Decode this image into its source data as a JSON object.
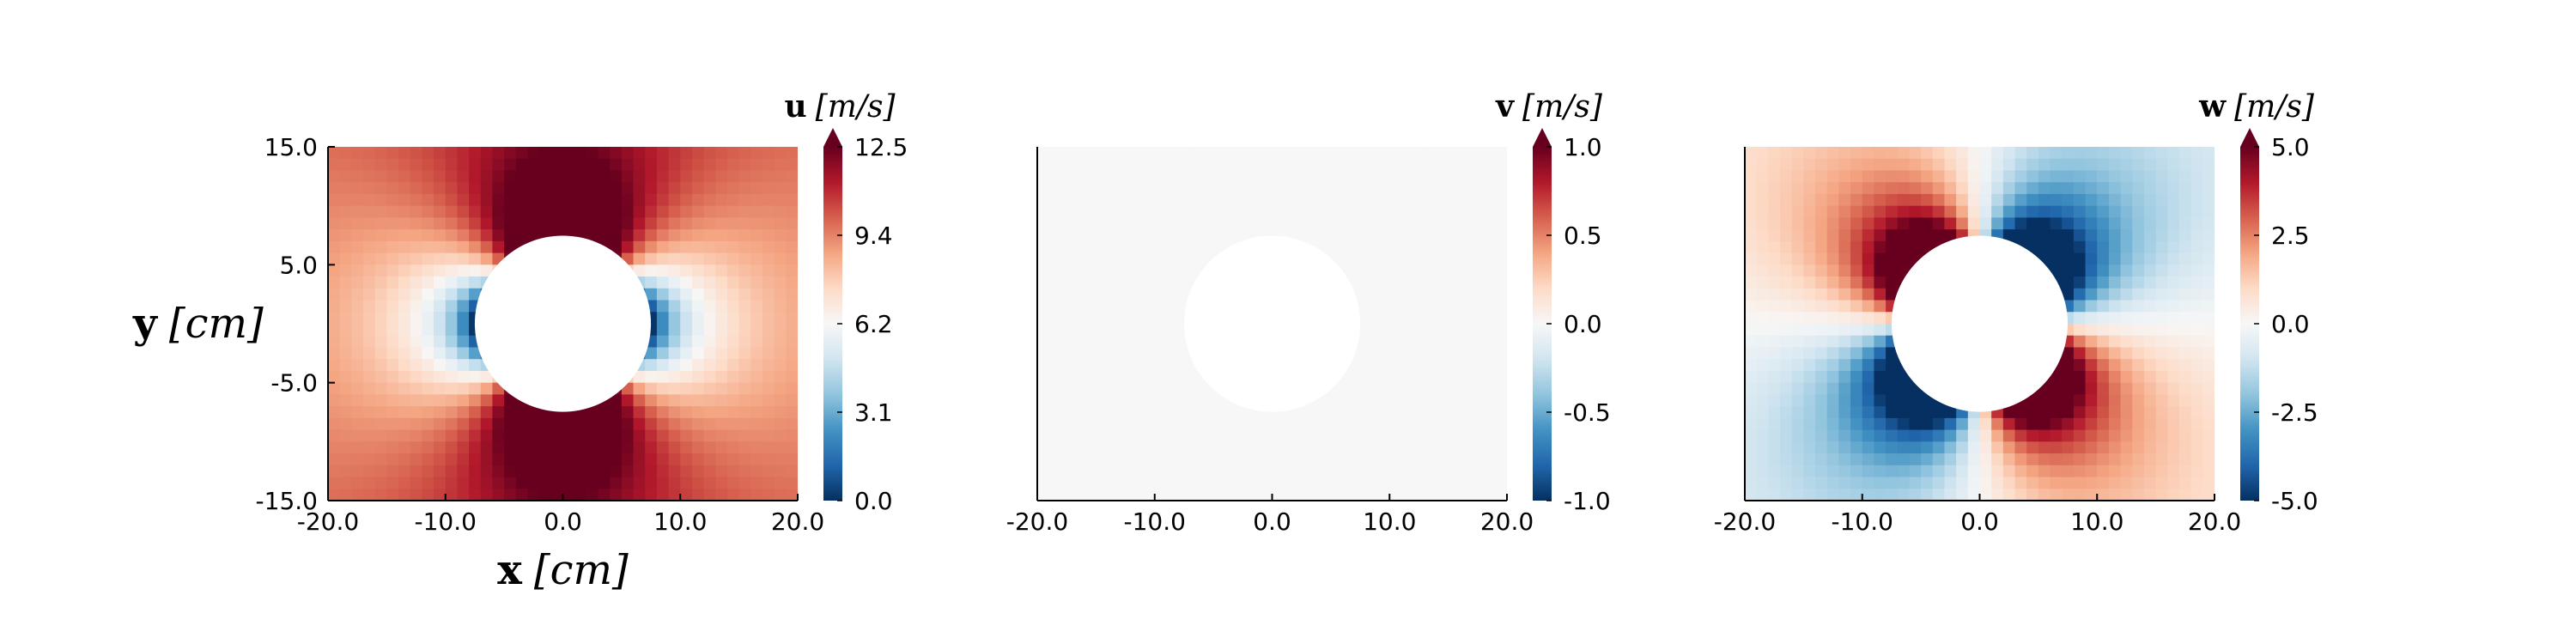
{
  "chart_data": [
    {
      "type": "heatmap",
      "field": "u",
      "colorbar_label": {
        "var": "u",
        "unit": "[m/s]"
      },
      "ylabel": {
        "var": "y",
        "unit": "[cm]"
      },
      "xlabel": {
        "var": "x",
        "unit": "[cm]"
      },
      "xlim": [
        -20,
        20
      ],
      "ylim": [
        -15,
        15
      ],
      "x_ticks": [
        "-20.0",
        "-10.0",
        "0.0",
        "10.0",
        "20.0"
      ],
      "y_ticks": [
        "15.0",
        "5.0",
        "-5.0",
        "-15.0"
      ],
      "show_y_ticks": true,
      "colorbar_ticks": [
        "12.5",
        "9.4",
        "6.2",
        "3.1",
        "0.0"
      ],
      "clim": [
        0,
        12.5
      ],
      "cylinder": {
        "center": [
          0,
          0
        ],
        "radius": 7.5
      },
      "free_stream": 10,
      "colormap": "RdBu_r",
      "grid": false
    },
    {
      "type": "heatmap",
      "field": "v",
      "colorbar_label": {
        "var": "v",
        "unit": "[m/s]"
      },
      "xlim": [
        -20,
        20
      ],
      "ylim": [
        -15,
        15
      ],
      "x_ticks": [
        "-20.0",
        "-10.0",
        "0.0",
        "10.0",
        "20.0"
      ],
      "show_y_ticks": false,
      "colorbar_ticks": [
        "1.0",
        "0.5",
        "0.0",
        "-0.5",
        "-1.0"
      ],
      "clim": [
        -1,
        1
      ],
      "cylinder": {
        "center": [
          0,
          0
        ],
        "radius": 7.5
      },
      "uniform_value": 0,
      "colormap": "RdBu_r",
      "grid": false
    },
    {
      "type": "heatmap",
      "field": "w",
      "colorbar_label": {
        "var": "w",
        "unit": "[m/s]"
      },
      "xlim": [
        -20,
        20
      ],
      "ylim": [
        -15,
        15
      ],
      "x_ticks": [
        "-20.0",
        "-10.0",
        "0.0",
        "10.0",
        "20.0"
      ],
      "show_y_ticks": false,
      "colorbar_ticks": [
        "5.0",
        "2.5",
        "0.0",
        "-2.5",
        "-5.0"
      ],
      "clim": [
        -5,
        5
      ],
      "cylinder": {
        "center": [
          0,
          0
        ],
        "radius": 7.5
      },
      "free_stream": 10,
      "colormap": "RdBu_r",
      "grid": false
    }
  ]
}
